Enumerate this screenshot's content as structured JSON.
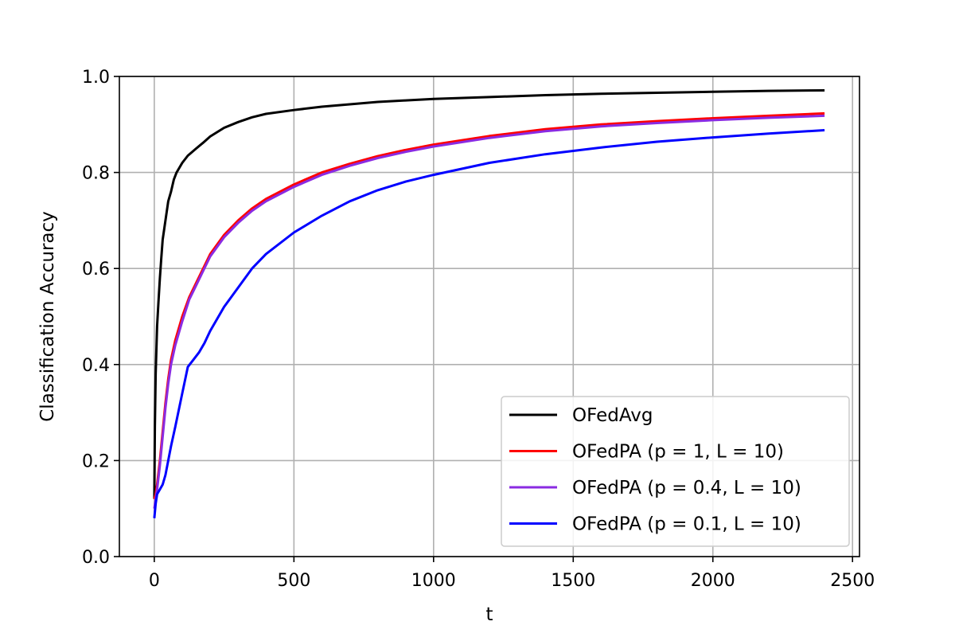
{
  "chart_data": {
    "type": "line",
    "xlabel": "t",
    "ylabel": "Classification Accuracy",
    "xlim": [
      -125,
      2525
    ],
    "ylim": [
      0.0,
      1.0
    ],
    "xticks": [
      0,
      500,
      1000,
      1500,
      2000,
      2500
    ],
    "xtick_labels": [
      "0",
      "500",
      "1000",
      "1500",
      "2000",
      "2500"
    ],
    "yticks": [
      0.0,
      0.2,
      0.4,
      0.6,
      0.8,
      1.0
    ],
    "ytick_labels": [
      "0.0",
      "0.2",
      "0.4",
      "0.6",
      "0.8",
      "1.0"
    ],
    "grid": true,
    "legend_position": "lower-right",
    "series": [
      {
        "name": "OFedAvg",
        "color": "#000000",
        "x": [
          0,
          2,
          5,
          10,
          15,
          20,
          25,
          30,
          40,
          50,
          60,
          70,
          80,
          100,
          120,
          150,
          175,
          200,
          250,
          300,
          350,
          400,
          500,
          600,
          700,
          800,
          900,
          1000,
          1200,
          1400,
          1600,
          1800,
          2000,
          2200,
          2400
        ],
        "y": [
          0.12,
          0.27,
          0.38,
          0.48,
          0.53,
          0.58,
          0.62,
          0.66,
          0.7,
          0.74,
          0.76,
          0.785,
          0.8,
          0.82,
          0.835,
          0.85,
          0.862,
          0.875,
          0.893,
          0.905,
          0.915,
          0.922,
          0.93,
          0.937,
          0.942,
          0.947,
          0.95,
          0.953,
          0.957,
          0.961,
          0.964,
          0.966,
          0.968,
          0.97,
          0.971
        ]
      },
      {
        "name": "OFedPA (p = 1, L = 10)",
        "color": "#ff0000",
        "x": [
          0,
          5,
          10,
          20,
          30,
          40,
          50,
          60,
          75,
          100,
          125,
          150,
          200,
          250,
          300,
          350,
          400,
          500,
          600,
          700,
          800,
          900,
          1000,
          1200,
          1400,
          1600,
          1800,
          2000,
          2200,
          2400
        ],
        "y": [
          0.12,
          0.13,
          0.15,
          0.2,
          0.26,
          0.32,
          0.37,
          0.41,
          0.45,
          0.5,
          0.54,
          0.57,
          0.63,
          0.67,
          0.7,
          0.725,
          0.745,
          0.775,
          0.8,
          0.818,
          0.834,
          0.847,
          0.858,
          0.876,
          0.89,
          0.9,
          0.907,
          0.913,
          0.918,
          0.923
        ]
      },
      {
        "name": "OFedPA (p = 0.4, L = 10)",
        "color": "#8a2be2",
        "x": [
          0,
          5,
          10,
          20,
          30,
          40,
          50,
          60,
          75,
          100,
          125,
          150,
          200,
          250,
          300,
          350,
          400,
          500,
          600,
          700,
          800,
          900,
          1000,
          1200,
          1400,
          1600,
          1800,
          2000,
          2200,
          2400
        ],
        "y": [
          0.1,
          0.12,
          0.14,
          0.19,
          0.25,
          0.31,
          0.36,
          0.4,
          0.44,
          0.49,
          0.535,
          0.565,
          0.625,
          0.665,
          0.695,
          0.72,
          0.74,
          0.77,
          0.795,
          0.814,
          0.83,
          0.843,
          0.854,
          0.872,
          0.886,
          0.896,
          0.903,
          0.909,
          0.914,
          0.918
        ]
      },
      {
        "name": "OFedPA (p = 0.1, L = 10)",
        "color": "#0000ff",
        "x": [
          0,
          5,
          10,
          20,
          30,
          40,
          50,
          60,
          75,
          100,
          120,
          140,
          160,
          180,
          200,
          250,
          300,
          350,
          400,
          500,
          600,
          700,
          800,
          900,
          1000,
          1200,
          1400,
          1600,
          1800,
          2000,
          2200,
          2400
        ],
        "y": [
          0.08,
          0.11,
          0.13,
          0.14,
          0.15,
          0.17,
          0.2,
          0.23,
          0.27,
          0.34,
          0.395,
          0.41,
          0.425,
          0.445,
          0.47,
          0.52,
          0.56,
          0.6,
          0.63,
          0.675,
          0.71,
          0.74,
          0.763,
          0.781,
          0.795,
          0.82,
          0.838,
          0.852,
          0.864,
          0.873,
          0.881,
          0.888
        ]
      }
    ]
  }
}
